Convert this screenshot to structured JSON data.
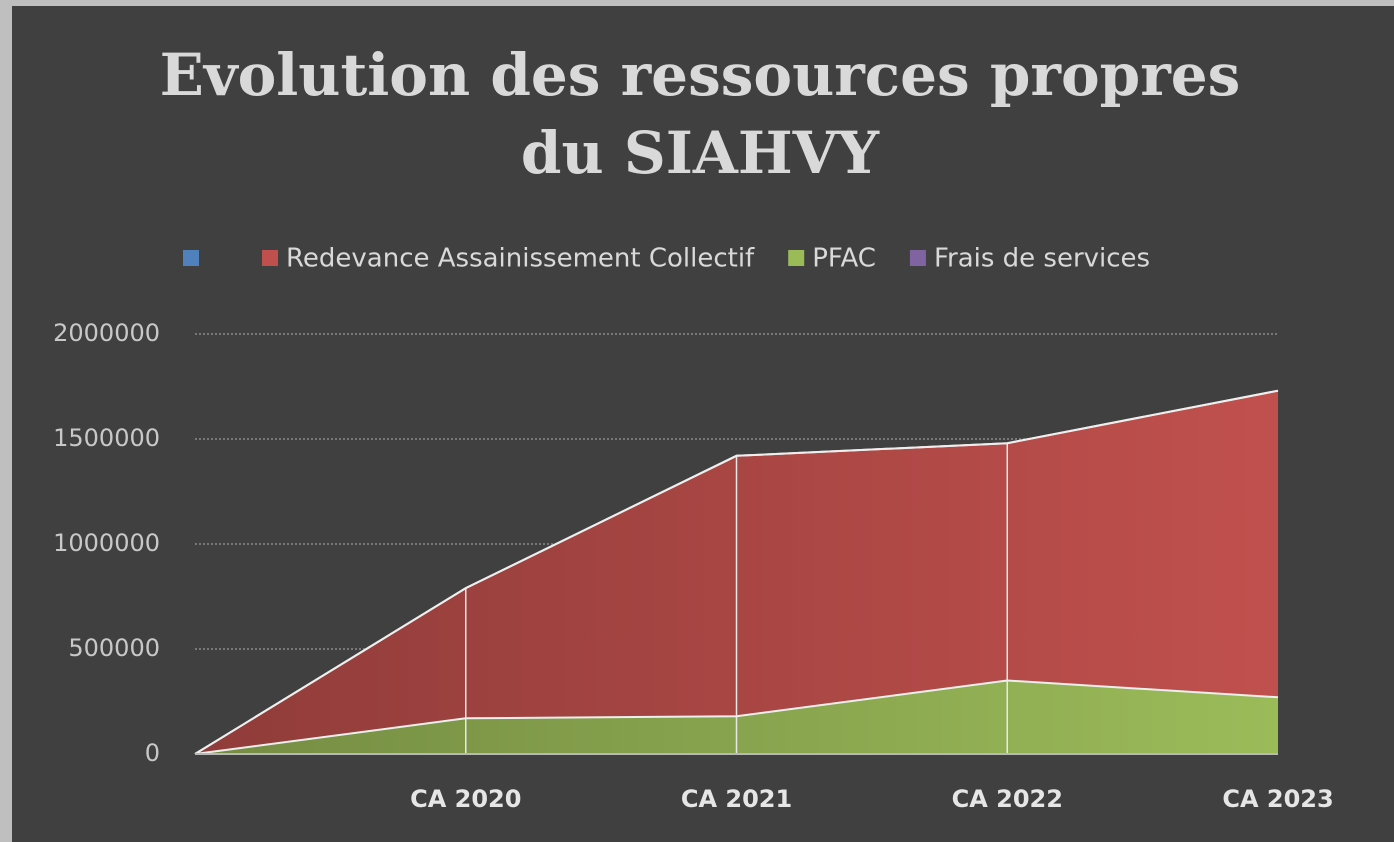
{
  "chart_data": {
    "type": "stacked_area",
    "title": "Evolution des ressources propres du SIAHVY",
    "categories": [
      null,
      "CA 2020",
      "CA 2021",
      "CA 2022",
      "CA 2023"
    ],
    "series": [
      {
        "color": "#4f81bd",
        "values": [
          0,
          0,
          0,
          0,
          0
        ]
      },
      {
        "name": "Redevance Assainissement Collectif",
        "color": "#c0504d",
        "values": [
          0,
          620000,
          1240000,
          1130000,
          1460000
        ]
      },
      {
        "name": "PFAC",
        "color": "#9bbb59",
        "values": [
          0,
          170000,
          180000,
          350000,
          270000
        ]
      },
      {
        "name": "Frais de services",
        "color": "#8064a2",
        "values": [
          0,
          0,
          0,
          0,
          0
        ]
      }
    ],
    "ylim": [
      0,
      2000000
    ],
    "yticks": [
      0,
      500000,
      1000000,
      1500000,
      2000000
    ],
    "grid": true,
    "legend": "top"
  }
}
